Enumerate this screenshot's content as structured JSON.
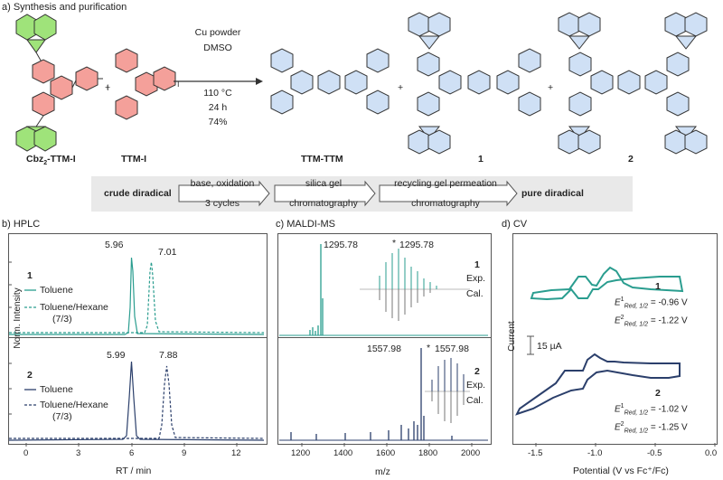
{
  "panel_a": {
    "title": "a) Synthesis and purification",
    "reagents": [
      "Cu powder",
      "DMSO",
      "110 °C",
      "24 h",
      "74%"
    ],
    "plus": "+",
    "compounds": {
      "cbz": "Cbz",
      "cbz_sub": "2",
      "cbz_rest": "-TTM-I",
      "ttm_i": "TTM-I",
      "ttm_ttm": "TTM-TTM",
      "one": "1",
      "two": "2"
    },
    "purification": {
      "start": "crude diradical",
      "step1_top": "base, oxidation",
      "step1_bottom": "3 cycles",
      "step2_top": "silica gel",
      "step2_bottom": "chromatography",
      "step3_top": "recycling gel permeation",
      "step3_bottom": "chromatography",
      "end": "pure diradical"
    },
    "colors": {
      "cbz_green": "#9fe37a",
      "ttm_red": "#f4a09a",
      "blue": "#5a8fd6"
    }
  },
  "panel_b": {
    "title": "b) HPLC",
    "ylabel": "Norm. Intensity",
    "xlabel": "RT / min",
    "top": {
      "label": "1",
      "legend": [
        "Toluene",
        "Toluene/Hexane",
        "(7/3)"
      ],
      "peak_labels": [
        "5.96",
        "7.01"
      ]
    },
    "bottom": {
      "label": "2",
      "legend": [
        "Toluene",
        "Toluene/Hexane",
        "(7/3)"
      ],
      "peak_labels": [
        "5.99",
        "7.88"
      ]
    }
  },
  "panel_c": {
    "title": "c) MALDI-MS",
    "xlabel": "m/z",
    "top": {
      "label": "1",
      "peak": "1295.78",
      "inset_peak": "1295.78",
      "star": "*",
      "exp": "Exp.",
      "cal": "Cal."
    },
    "bottom": {
      "label": "2",
      "peak": "1557.98",
      "inset_peak": "1557.98",
      "star": "*",
      "exp": "Exp.",
      "cal": "Cal."
    }
  },
  "panel_d": {
    "title": "d) CV",
    "ylabel": "Current",
    "xlabel": "Potential (V vs Fc⁺/Fc)",
    "scale": "15 µA",
    "top": {
      "label": "1",
      "e1_sym": "E",
      "e1_sup": "1",
      "e1_sub": "Red, 1/2",
      "e1_val": "= -0.96 V",
      "e2_sym": "E",
      "e2_sup": "2",
      "e2_sub": "Red, 1/2",
      "e2_val": "= -1.22 V"
    },
    "bottom": {
      "label": "2",
      "e1_sym": "E",
      "e1_sup": "1",
      "e1_sub": "Red, 1/2",
      "e1_val": "= -1.02 V",
      "e2_sym": "E",
      "e2_sup": "2",
      "e2_sub": "Red, 1/2",
      "e2_val": "= -1.25 V"
    }
  },
  "chart_data": [
    {
      "type": "line",
      "title": "b) HPLC",
      "xlabel": "RT / min",
      "ylabel": "Norm. Intensity",
      "xlim": [
        0,
        13
      ],
      "xticks": [
        0,
        3,
        6,
        9,
        12
      ],
      "series": [
        {
          "name": "1 Toluene",
          "peak_x": 5.96,
          "color": "#2a9d8f",
          "style": "solid"
        },
        {
          "name": "1 Toluene/Hexane (7/3)",
          "peak_x": 7.01,
          "color": "#2a9d8f",
          "style": "dashed"
        },
        {
          "name": "2 Toluene",
          "peak_x": 5.99,
          "color": "#2b3f6b",
          "style": "solid"
        },
        {
          "name": "2 Toluene/Hexane (7/3)",
          "peak_x": 7.88,
          "color": "#2b3f6b",
          "style": "dashed"
        }
      ]
    },
    {
      "type": "bar",
      "title": "c) MALDI-MS",
      "xlabel": "m/z",
      "xlim": [
        1100,
        2100
      ],
      "xticks": [
        1200,
        1400,
        1600,
        1800,
        2000
      ],
      "series": [
        {
          "name": "1",
          "main_peak": 1295.78,
          "color": "#2a9d8f"
        },
        {
          "name": "2",
          "main_peak": 1557.98,
          "color": "#2b3f6b"
        }
      ]
    },
    {
      "type": "line",
      "title": "d) CV",
      "xlabel": "Potential (V vs Fc+/Fc)",
      "ylabel": "Current",
      "xlim": [
        -1.7,
        0.0
      ],
      "xticks": [
        -1.5,
        -1.0,
        -0.5,
        0.0
      ],
      "series": [
        {
          "name": "1",
          "E1": -0.96,
          "E2": -1.22,
          "color": "#2a9d8f"
        },
        {
          "name": "2",
          "E1": -1.02,
          "E2": -1.25,
          "color": "#2b3f6b"
        }
      ]
    }
  ]
}
